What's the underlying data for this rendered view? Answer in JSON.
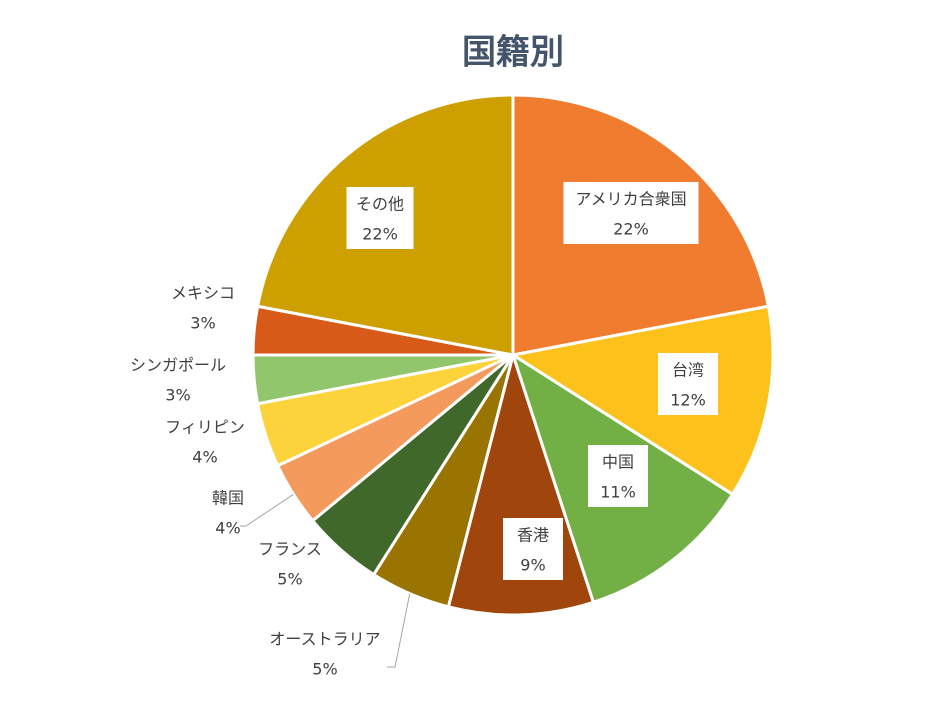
{
  "chart_data": {
    "type": "pie",
    "title": "国籍別",
    "categories": [
      "アメリカ合衆国",
      "台湾",
      "中国",
      "香港",
      "オーストラリア",
      "フランス",
      "韓国",
      "フィリピン",
      "シンガポール",
      "メキシコ",
      "その他"
    ],
    "values": [
      22,
      12,
      11,
      9,
      5,
      5,
      4,
      4,
      3,
      3,
      22
    ],
    "value_labels": [
      "22%",
      "12%",
      "11%",
      "9%",
      "5%",
      "5%",
      "4%",
      "4%",
      "3%",
      "3%",
      "22%"
    ],
    "colors": [
      "#f07c30",
      "#fcc21b",
      "#72b046",
      "#a0460c",
      "#9a7400",
      "#41682b",
      "#f39a5c",
      "#fcd33a",
      "#92c66c",
      "#d85a18",
      "#cda000"
    ]
  }
}
